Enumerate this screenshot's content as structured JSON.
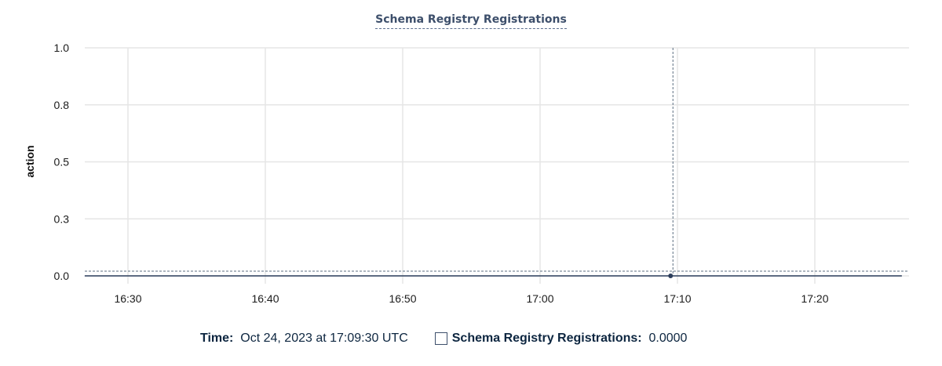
{
  "chart_data": {
    "type": "line",
    "title": "Schema Registry Registrations",
    "ylabel": "action",
    "xlabel": "",
    "ylim": [
      0,
      1
    ],
    "xlim": [
      "16:26:51",
      "17:26:20"
    ],
    "y_ticks": [
      {
        "value": 0,
        "label": "0.0"
      },
      {
        "value": 0.25,
        "label": "0.3"
      },
      {
        "value": 0.5,
        "label": "0.5"
      },
      {
        "value": 0.75,
        "label": "0.8"
      },
      {
        "value": 1,
        "label": "1.0"
      }
    ],
    "x_ticks": [
      "16:30",
      "16:40",
      "16:50",
      "17:00",
      "17:10",
      "17:20"
    ],
    "grid": true,
    "series": [
      {
        "name": "Schema Registry Registrations",
        "color": "#2c3e5c",
        "points": [
          [
            "16:26:51",
            0
          ],
          [
            "17:26:20",
            0
          ]
        ]
      }
    ],
    "hover": {
      "x": "17:09:30",
      "y": 0
    }
  },
  "tooltip": {
    "time_label": "Time:",
    "time_value": "Oct 24, 2023 at 17:09:30 UTC",
    "series_label": "Schema Registry Registrations:",
    "series_value": "0.0000"
  }
}
